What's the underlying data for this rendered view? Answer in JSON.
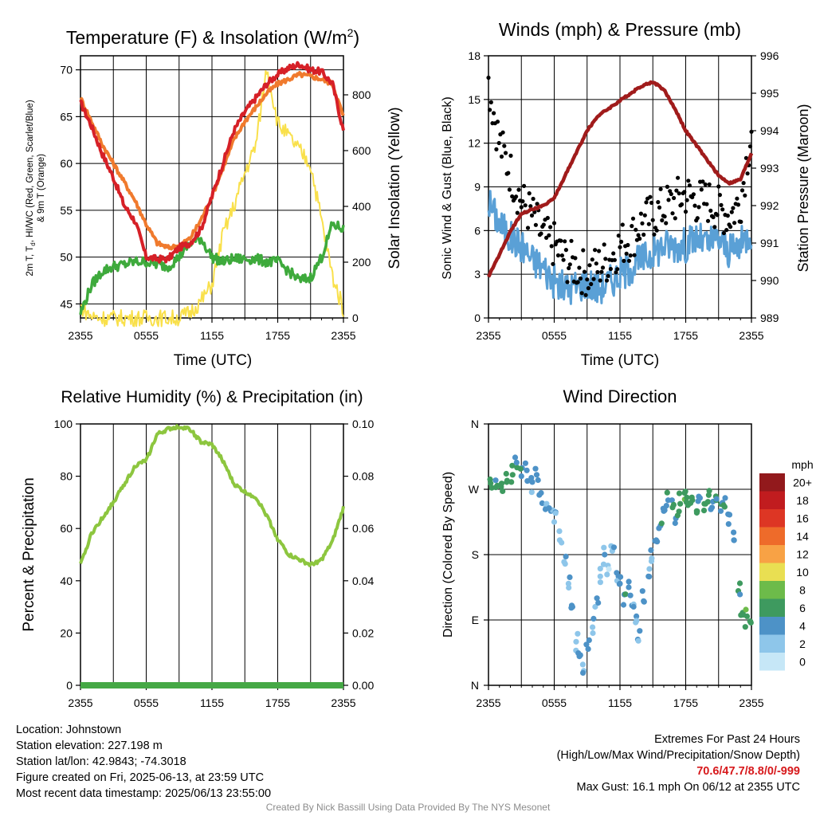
{
  "panels": {
    "temp": {
      "title": "Temperature (F) & Insolation (W/m²)",
      "title_main": "Temperature (F) & Insolation (W/m",
      "title_sup": "2",
      "title_close": ")",
      "ylabel_line1": "2m T, T, HI/WC (Red, Green, Scarlet/Blue)",
      "ylabel_line1_a": "2m T, T",
      "ylabel_line1_sub": "d",
      "ylabel_line1_b": ", HI/WC (Red, Green, Scarlet/Blue)",
      "ylabel_line2": "& 9m T (Orange)",
      "y2label": "Solar Insolation (Yellow)",
      "xlabel": "Time (UTC)"
    },
    "wind": {
      "title": "Winds (mph) & Pressure (mb)",
      "ylabel": "Sonic Wind & Gust (Blue, Black)",
      "y2label": "Station Pressure (Maroon)",
      "xlabel": "Time (UTC)"
    },
    "rh": {
      "title": "Relative Humidity (%) & Precipitation (in)",
      "ylabel": "Percent & Precipitation",
      "xlabel": ""
    },
    "dir": {
      "title": "Wind Direction",
      "ylabel": "Direction (Colored By Speed)",
      "colorbar_title": "mph",
      "xlabel": ""
    }
  },
  "x_ticks": [
    "2355",
    "0555",
    "1155",
    "1755",
    "2355"
  ],
  "info": {
    "location": "Location: Johnstown",
    "elevation": "Station elevation: 227.198 m",
    "latlon": "Station lat/lon: 42.9843; -74.3018",
    "created": "Figure created on Fri, 2025-06-13, at 23:59 UTC",
    "latest": "Most recent data timestamp: 2025/06/13 23:55:00"
  },
  "extremes": {
    "title": "Extremes For Past 24 Hours",
    "subtitle": "(High/Low/Max Wind/Precipitation/Snow Depth)",
    "values": "70.6/47.7/8.8/0/-999",
    "max_gust": "Max Gust: 16.1 mph On 06/12 at 2355 UTC"
  },
  "credit": "Created By Nick Bassill Using Data Provided By The NYS Mesonet",
  "colors": {
    "temp_2m": "#d62027",
    "temp_9m": "#f07a2d",
    "dewpoint": "#3eaa3c",
    "insolation": "#f9e04b",
    "pressure": "#a01b1b",
    "wind": "#5aa0d6",
    "gust": "#000000",
    "rh": "#8dc63f",
    "precip": "#45a845"
  },
  "chart_data": [
    {
      "type": "line",
      "title": "Temperature (F) & Insolation (W/m2)",
      "xlabel": "Time (UTC)",
      "ylabel": "2m T, Td, HI/WC (Red, Green, Scarlet/Blue) & 9m T (Orange)",
      "y2label": "Solar Insolation (Yellow)",
      "x_hours": [
        0,
        1,
        2,
        3,
        4,
        5,
        6,
        7,
        8,
        9,
        10,
        11,
        12,
        13,
        14,
        15,
        16,
        17,
        18,
        19,
        20,
        21,
        22,
        23,
        24
      ],
      "x_tick_labels": [
        "2355",
        "0555",
        "1155",
        "1755",
        "2355"
      ],
      "ylim": [
        43.5,
        71.5
      ],
      "y2lim": [
        0,
        940
      ],
      "series": [
        {
          "name": "2m T (Red)",
          "axis": "left",
          "values": [
            66.5,
            64,
            61,
            58.5,
            55.5,
            53.8,
            50,
            49.8,
            49.8,
            51,
            51.5,
            53,
            56.5,
            60,
            63.5,
            65.5,
            67,
            68.5,
            69.5,
            70.2,
            70.6,
            70,
            69.8,
            68.5,
            63.5
          ]
        },
        {
          "name": "9m T (Orange)",
          "axis": "left",
          "values": [
            67,
            64.5,
            62,
            60,
            58,
            56,
            53.5,
            51.5,
            51,
            51.2,
            52,
            54,
            56.5,
            59.5,
            62.5,
            64.5,
            66,
            67.5,
            68.5,
            69,
            69.5,
            69.3,
            69,
            68.5,
            65
          ]
        },
        {
          "name": "Dewpoint (Green)",
          "axis": "left",
          "values": [
            44,
            47,
            48.5,
            49,
            49.2,
            49.5,
            49.5,
            49.2,
            49,
            50,
            51.5,
            52,
            50,
            49.5,
            49.8,
            49.8,
            49.8,
            49.5,
            49.5,
            48.5,
            47.5,
            47.8,
            50,
            53.5,
            53
          ]
        },
        {
          "name": "Solar Insolation (Yellow)",
          "axis": "right",
          "values": [
            40,
            5,
            0,
            0,
            0,
            0,
            0,
            0,
            0,
            0,
            20,
            60,
            120,
            300,
            400,
            520,
            620,
            900,
            700,
            650,
            600,
            550,
            350,
            150,
            30
          ]
        }
      ]
    },
    {
      "type": "line",
      "title": "Winds (mph) & Pressure (mb)",
      "xlabel": "Time (UTC)",
      "ylabel": "Sonic Wind & Gust (Blue, Black)",
      "y2label": "Station Pressure (Maroon)",
      "x_hours": [
        0,
        1,
        2,
        3,
        4,
        5,
        6,
        7,
        8,
        9,
        10,
        11,
        12,
        13,
        14,
        15,
        16,
        17,
        18,
        19,
        20,
        21,
        22,
        23,
        24
      ],
      "x_tick_labels": [
        "2355",
        "0555",
        "1155",
        "1755",
        "2355"
      ],
      "ylim": [
        0,
        18
      ],
      "y2lim": [
        989,
        996
      ],
      "series": [
        {
          "name": "Pressure (Maroon)",
          "axis": "right",
          "values": [
            990.1,
            990.7,
            991.3,
            991.8,
            991.9,
            992.0,
            992.2,
            992.8,
            993.4,
            994.0,
            994.4,
            994.6,
            994.8,
            995.0,
            995.2,
            995.3,
            995.1,
            994.6,
            994.0,
            993.6,
            993.2,
            992.8,
            992.6,
            992.7,
            993.4
          ]
        },
        {
          "name": "Sonic Wind (Blue)",
          "axis": "left",
          "values": [
            8,
            6.5,
            5.5,
            5,
            4,
            3.5,
            2.5,
            2,
            2.2,
            2.5,
            2,
            2.5,
            3,
            3.5,
            4,
            4.5,
            5,
            5,
            5,
            5.5,
            5,
            5.5,
            4.5,
            5,
            6
          ]
        },
        {
          "name": "Gust (Black)",
          "axis": "left",
          "values": [
            16.1,
            12,
            10,
            8,
            7,
            5.5,
            5,
            4,
            3.5,
            3,
            3.5,
            4,
            5,
            5.5,
            6.5,
            7,
            7.5,
            8,
            8.5,
            8,
            8,
            7.5,
            7,
            8,
            13
          ]
        }
      ]
    },
    {
      "type": "line",
      "title": "Relative Humidity (%) & Precipitation (in)",
      "xlabel": "",
      "ylabel": "Percent & Precipitation",
      "x_hours": [
        0,
        1,
        2,
        3,
        4,
        5,
        6,
        7,
        8,
        9,
        10,
        11,
        12,
        13,
        14,
        15,
        16,
        17,
        18,
        19,
        20,
        21,
        22,
        23,
        24
      ],
      "x_tick_labels": [
        "2355",
        "0555",
        "1155",
        "1755",
        "2355"
      ],
      "ylim": [
        0,
        100
      ],
      "y2lim": [
        0,
        0.1
      ],
      "series": [
        {
          "name": "RH (Green)",
          "axis": "left",
          "values": [
            46,
            58,
            64,
            70,
            77,
            84,
            86,
            96,
            98,
            99,
            98,
            93,
            92,
            86,
            77,
            74,
            72,
            65,
            56,
            50,
            48,
            46,
            48,
            55,
            68
          ]
        },
        {
          "name": "Precipitation",
          "axis": "right",
          "values": [
            0,
            0,
            0,
            0,
            0,
            0,
            0,
            0,
            0,
            0,
            0,
            0,
            0,
            0,
            0,
            0,
            0,
            0,
            0,
            0,
            0,
            0,
            0,
            0,
            0
          ]
        }
      ]
    },
    {
      "type": "scatter",
      "title": "Wind Direction",
      "xlabel": "",
      "ylabel": "Direction (Colored By Speed)",
      "x_tick_labels": [
        "2355",
        "0555",
        "1155",
        "1755",
        "2355"
      ],
      "y_tick_labels": [
        "N",
        "E",
        "S",
        "W",
        "N"
      ],
      "ylim_deg": [
        0,
        360
      ],
      "colorbar": {
        "title": "mph",
        "labels": [
          "0",
          "2",
          "4",
          "6",
          "8",
          "10",
          "12",
          "14",
          "16",
          "18",
          "20+"
        ],
        "colors": [
          "#c6e7f7",
          "#8ec6ea",
          "#4d92c7",
          "#3e9a5f",
          "#6dbb4a",
          "#e9df52",
          "#f8a245",
          "#ee6b2a",
          "#dd3624",
          "#c11c1f",
          "#92191c"
        ]
      },
      "points": [
        {
          "x_hours": 0.3,
          "dir_deg": 272,
          "speed": 6
        },
        {
          "x_hours": 0.8,
          "dir_deg": 275,
          "speed": 5
        },
        {
          "x_hours": 1.2,
          "dir_deg": 278,
          "speed": 6
        },
        {
          "x_hours": 1.7,
          "dir_deg": 282,
          "speed": 5
        },
        {
          "x_hours": 2.2,
          "dir_deg": 290,
          "speed": 6
        },
        {
          "x_hours": 2.6,
          "dir_deg": 300,
          "speed": 5
        },
        {
          "x_hours": 3.0,
          "dir_deg": 288,
          "speed": 4
        },
        {
          "x_hours": 3.5,
          "dir_deg": 296,
          "speed": 4
        },
        {
          "x_hours": 4.0,
          "dir_deg": 280,
          "speed": 3
        },
        {
          "x_hours": 4.4,
          "dir_deg": 290,
          "speed": 4
        },
        {
          "x_hours": 4.8,
          "dir_deg": 265,
          "speed": 3
        },
        {
          "x_hours": 5.3,
          "dir_deg": 250,
          "speed": 2
        },
        {
          "x_hours": 5.7,
          "dir_deg": 240,
          "speed": 3
        },
        {
          "x_hours": 6.0,
          "dir_deg": 225,
          "speed": 2
        },
        {
          "x_hours": 6.5,
          "dir_deg": 200,
          "speed": 2
        },
        {
          "x_hours": 6.9,
          "dir_deg": 170,
          "speed": 2
        },
        {
          "x_hours": 7.3,
          "dir_deg": 140,
          "speed": 2
        },
        {
          "x_hours": 7.6,
          "dir_deg": 110,
          "speed": 3
        },
        {
          "x_hours": 8.0,
          "dir_deg": 60,
          "speed": 2
        },
        {
          "x_hours": 8.3,
          "dir_deg": 40,
          "speed": 3
        },
        {
          "x_hours": 8.7,
          "dir_deg": 20,
          "speed": 2
        },
        {
          "x_hours": 9.1,
          "dir_deg": 50,
          "speed": 3
        },
        {
          "x_hours": 9.5,
          "dir_deg": 80,
          "speed": 2
        },
        {
          "x_hours": 9.9,
          "dir_deg": 120,
          "speed": 3
        },
        {
          "x_hours": 10.2,
          "dir_deg": 150,
          "speed": 2
        },
        {
          "x_hours": 10.6,
          "dir_deg": 180,
          "speed": 3
        },
        {
          "x_hours": 10.9,
          "dir_deg": 165,
          "speed": 1
        },
        {
          "x_hours": 11.3,
          "dir_deg": 185,
          "speed": 2
        },
        {
          "x_hours": 11.7,
          "dir_deg": 155,
          "speed": 3
        },
        {
          "x_hours": 12.0,
          "dir_deg": 140,
          "speed": 4
        },
        {
          "x_hours": 12.4,
          "dir_deg": 125,
          "speed": 4
        },
        {
          "x_hours": 12.8,
          "dir_deg": 135,
          "speed": 4
        },
        {
          "x_hours": 13.1,
          "dir_deg": 110,
          "speed": 3
        },
        {
          "x_hours": 13.5,
          "dir_deg": 95,
          "speed": 3
        },
        {
          "x_hours": 13.8,
          "dir_deg": 75,
          "speed": 3
        },
        {
          "x_hours": 14.2,
          "dir_deg": 115,
          "speed": 3
        },
        {
          "x_hours": 14.6,
          "dir_deg": 150,
          "speed": 3
        },
        {
          "x_hours": 14.9,
          "dir_deg": 175,
          "speed": 2
        },
        {
          "x_hours": 15.3,
          "dir_deg": 200,
          "speed": 3
        },
        {
          "x_hours": 15.7,
          "dir_deg": 220,
          "speed": 4
        },
        {
          "x_hours": 16.0,
          "dir_deg": 240,
          "speed": 3
        },
        {
          "x_hours": 16.4,
          "dir_deg": 255,
          "speed": 4
        },
        {
          "x_hours": 16.8,
          "dir_deg": 245,
          "speed": 5
        },
        {
          "x_hours": 17.1,
          "dir_deg": 230,
          "speed": 4
        },
        {
          "x_hours": 17.5,
          "dir_deg": 250,
          "speed": 5
        },
        {
          "x_hours": 17.9,
          "dir_deg": 265,
          "speed": 6
        },
        {
          "x_hours": 18.2,
          "dir_deg": 248,
          "speed": 5
        },
        {
          "x_hours": 18.6,
          "dir_deg": 255,
          "speed": 6
        },
        {
          "x_hours": 19.0,
          "dir_deg": 240,
          "speed": 5
        },
        {
          "x_hours": 19.3,
          "dir_deg": 258,
          "speed": 4
        },
        {
          "x_hours": 19.7,
          "dir_deg": 250,
          "speed": 6
        },
        {
          "x_hours": 20.1,
          "dir_deg": 262,
          "speed": 5
        },
        {
          "x_hours": 20.4,
          "dir_deg": 245,
          "speed": 4
        },
        {
          "x_hours": 20.8,
          "dir_deg": 255,
          "speed": 5
        },
        {
          "x_hours": 21.2,
          "dir_deg": 240,
          "speed": 4
        },
        {
          "x_hours": 21.6,
          "dir_deg": 258,
          "speed": 4
        },
        {
          "x_hours": 22.0,
          "dir_deg": 235,
          "speed": 3
        },
        {
          "x_hours": 22.4,
          "dir_deg": 200,
          "speed": 4
        },
        {
          "x_hours": 22.8,
          "dir_deg": 130,
          "speed": 5
        },
        {
          "x_hours": 23.2,
          "dir_deg": 100,
          "speed": 6
        },
        {
          "x_hours": 23.6,
          "dir_deg": 95,
          "speed": 6
        },
        {
          "x_hours": 23.9,
          "dir_deg": 88,
          "speed": 6
        }
      ]
    }
  ]
}
